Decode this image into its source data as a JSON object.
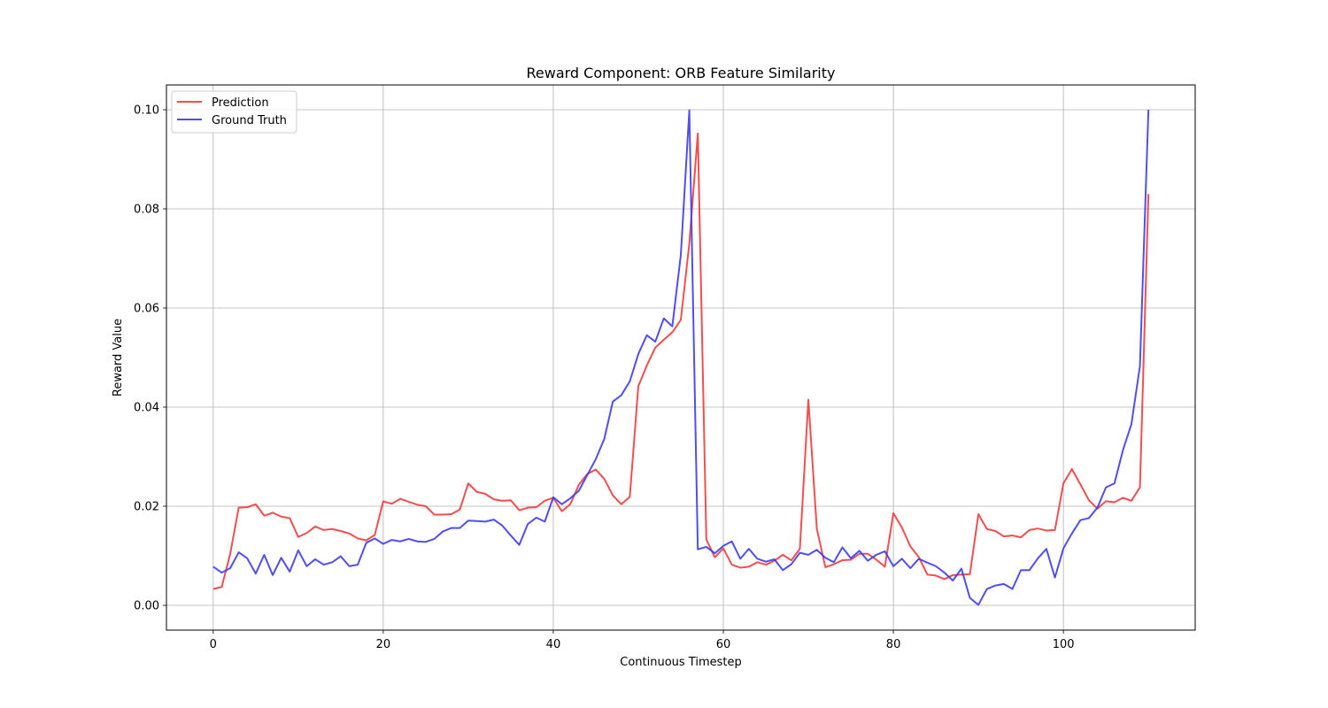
{
  "chart_data": {
    "type": "line",
    "title": "Reward Component: ORB Feature Similarity",
    "xlabel": "Continuous Timestep",
    "ylabel": "Reward Value",
    "xlim": [
      -5.5,
      115.5
    ],
    "ylim": [
      -0.005,
      0.105
    ],
    "xticks": [
      0,
      20,
      40,
      60,
      80,
      100
    ],
    "yticks": [
      0.0,
      0.02,
      0.04,
      0.06,
      0.08,
      0.1
    ],
    "ytick_labels": [
      "0.00",
      "0.02",
      "0.04",
      "0.06",
      "0.08",
      "0.10"
    ],
    "grid": true,
    "legend_position": "upper-left",
    "series": [
      {
        "name": "Prediction",
        "color": "#f03c3c",
        "values": [
          0.0033,
          0.0037,
          0.0104,
          0.0197,
          0.0198,
          0.0204,
          0.0181,
          0.0187,
          0.0179,
          0.0176,
          0.0138,
          0.0146,
          0.0159,
          0.0152,
          0.0154,
          0.015,
          0.0145,
          0.0135,
          0.0131,
          0.0142,
          0.021,
          0.0205,
          0.0215,
          0.0209,
          0.0203,
          0.02,
          0.0183,
          0.0183,
          0.0184,
          0.0193,
          0.0246,
          0.0229,
          0.0225,
          0.0214,
          0.0211,
          0.0212,
          0.0192,
          0.0197,
          0.0198,
          0.0211,
          0.0217,
          0.019,
          0.0204,
          0.0243,
          0.0265,
          0.0274,
          0.0255,
          0.0222,
          0.0204,
          0.0219,
          0.0442,
          0.0484,
          0.052,
          0.0536,
          0.0551,
          0.0576,
          0.073,
          0.0952,
          0.0133,
          0.0097,
          0.0115,
          0.0082,
          0.0076,
          0.0078,
          0.0087,
          0.0082,
          0.009,
          0.0102,
          0.0091,
          0.0114,
          0.0415,
          0.0154,
          0.0077,
          0.0083,
          0.0091,
          0.0092,
          0.0104,
          0.0104,
          0.0092,
          0.0078,
          0.0186,
          0.0157,
          0.0119,
          0.0097,
          0.0062,
          0.006,
          0.0053,
          0.0061,
          0.0062,
          0.0063,
          0.0184,
          0.0154,
          0.015,
          0.0139,
          0.0141,
          0.0137,
          0.0152,
          0.0155,
          0.0151,
          0.0152,
          0.0246,
          0.0275,
          0.0244,
          0.0212,
          0.0195,
          0.021,
          0.0208,
          0.0217,
          0.0211,
          0.0238,
          0.083
        ]
      },
      {
        "name": "Ground Truth",
        "color": "#3c3cf0",
        "values": [
          0.0078,
          0.0066,
          0.0075,
          0.0107,
          0.0095,
          0.0064,
          0.0102,
          0.0061,
          0.0096,
          0.0068,
          0.0111,
          0.0079,
          0.0093,
          0.0082,
          0.0087,
          0.0099,
          0.0079,
          0.0082,
          0.0126,
          0.0135,
          0.0124,
          0.0132,
          0.0129,
          0.0134,
          0.0129,
          0.0128,
          0.0134,
          0.0149,
          0.0156,
          0.0156,
          0.0171,
          0.017,
          0.0169,
          0.0173,
          0.0161,
          0.0141,
          0.0122,
          0.0164,
          0.0177,
          0.0169,
          0.0218,
          0.0204,
          0.0216,
          0.0231,
          0.0263,
          0.0295,
          0.0336,
          0.0411,
          0.0424,
          0.0452,
          0.0507,
          0.0545,
          0.0532,
          0.0579,
          0.0563,
          0.0707,
          0.0999,
          0.0113,
          0.0118,
          0.0105,
          0.012,
          0.0129,
          0.0094,
          0.0114,
          0.0094,
          0.0088,
          0.0093,
          0.0071,
          0.0083,
          0.0106,
          0.0102,
          0.0112,
          0.0096,
          0.0087,
          0.0117,
          0.0095,
          0.011,
          0.009,
          0.0102,
          0.0109,
          0.0079,
          0.0094,
          0.0075,
          0.0094,
          0.0086,
          0.0079,
          0.0066,
          0.005,
          0.0074,
          0.0015,
          0.0001,
          0.0033,
          0.004,
          0.0043,
          0.0033,
          0.0071,
          0.0071,
          0.0095,
          0.0114,
          0.0056,
          0.0115,
          0.0145,
          0.0172,
          0.0176,
          0.0197,
          0.0238,
          0.0246,
          0.0313,
          0.0366,
          0.0483,
          0.1
        ]
      }
    ]
  }
}
